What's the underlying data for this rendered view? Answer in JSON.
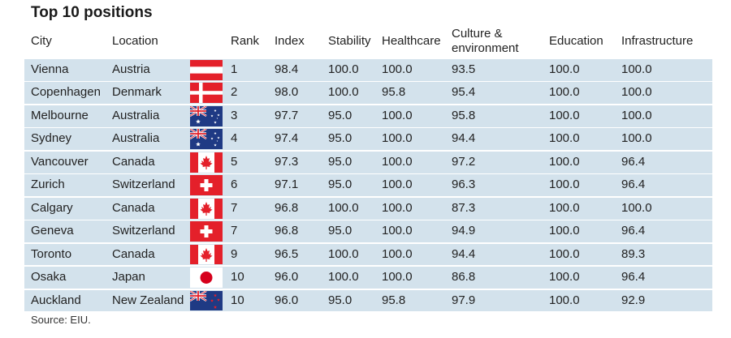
{
  "title": "Top 10 positions",
  "headers": {
    "city": "City",
    "location": "Location",
    "rank": "Rank",
    "index": "Index",
    "stability": "Stability",
    "healthcare": "Healthcare",
    "culture_line1": "Culture &",
    "culture_line2": "environment",
    "education": "Education",
    "infrastructure": "Infrastructure"
  },
  "rows": [
    {
      "city": "Vienna",
      "location": "Austria",
      "flag": "austria-flag-icon",
      "rank": "1",
      "index": "98.4",
      "stability": "100.0",
      "healthcare": "100.0",
      "culture": "93.5",
      "education": "100.0",
      "infrastructure": "100.0"
    },
    {
      "city": "Copenhagen",
      "location": "Denmark",
      "flag": "denmark-flag-icon",
      "rank": "2",
      "index": "98.0",
      "stability": "100.0",
      "healthcare": "95.8",
      "culture": "95.4",
      "education": "100.0",
      "infrastructure": "100.0"
    },
    {
      "city": "Melbourne",
      "location": "Australia",
      "flag": "australia-flag-icon",
      "rank": "3",
      "index": "97.7",
      "stability": "95.0",
      "healthcare": "100.0",
      "culture": "95.8",
      "education": "100.0",
      "infrastructure": "100.0"
    },
    {
      "city": "Sydney",
      "location": "Australia",
      "flag": "australia-flag-icon",
      "rank": "4",
      "index": "97.4",
      "stability": "95.0",
      "healthcare": "100.0",
      "culture": "94.4",
      "education": "100.0",
      "infrastructure": "100.0"
    },
    {
      "city": "Vancouver",
      "location": "Canada",
      "flag": "canada-flag-icon",
      "rank": "5",
      "index": "97.3",
      "stability": "95.0",
      "healthcare": "100.0",
      "culture": "97.2",
      "education": "100.0",
      "infrastructure": "96.4"
    },
    {
      "city": "Zurich",
      "location": "Switzerland",
      "flag": "switzerland-flag-icon",
      "rank": "6",
      "index": "97.1",
      "stability": "95.0",
      "healthcare": "100.0",
      "culture": "96.3",
      "education": "100.0",
      "infrastructure": "96.4"
    },
    {
      "city": "Calgary",
      "location": "Canada",
      "flag": "canada-flag-icon",
      "rank": "7",
      "index": "96.8",
      "stability": "100.0",
      "healthcare": "100.0",
      "culture": "87.3",
      "education": "100.0",
      "infrastructure": "100.0"
    },
    {
      "city": "Geneva",
      "location": "Switzerland",
      "flag": "switzerland-flag-icon",
      "rank": "7",
      "index": "96.8",
      "stability": "95.0",
      "healthcare": "100.0",
      "culture": "94.9",
      "education": "100.0",
      "infrastructure": "96.4"
    },
    {
      "city": "Toronto",
      "location": "Canada",
      "flag": "canada-flag-icon",
      "rank": "9",
      "index": "96.5",
      "stability": "100.0",
      "healthcare": "100.0",
      "culture": "94.4",
      "education": "100.0",
      "infrastructure": "89.3"
    },
    {
      "city": "Osaka",
      "location": "Japan",
      "flag": "japan-flag-icon",
      "rank": "10",
      "index": "96.0",
      "stability": "100.0",
      "healthcare": "100.0",
      "culture": "86.8",
      "education": "100.0",
      "infrastructure": "96.4"
    },
    {
      "city": "Auckland",
      "location": "New Zealand",
      "flag": "new-zealand-flag-icon",
      "rank": "10",
      "index": "96.0",
      "stability": "95.0",
      "healthcare": "95.8",
      "culture": "97.9",
      "education": "100.0",
      "infrastructure": "92.9"
    }
  ],
  "source": "Source: EIU.",
  "colors": {
    "row_background": "#d3e2ec",
    "flag_red": "#e4202a",
    "flag_blue": "#1f3a84"
  }
}
